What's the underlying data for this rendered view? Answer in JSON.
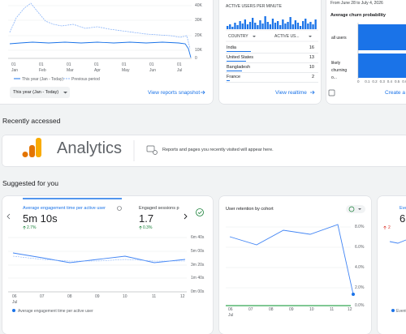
{
  "overview_card": {
    "y_ticks": [
      "40K",
      "30K",
      "20K",
      "10K",
      "0"
    ],
    "x_ticks": [
      [
        "01",
        "Jan"
      ],
      [
        "01",
        "Feb"
      ],
      [
        "01",
        "Mar"
      ],
      [
        "01",
        "Apr"
      ],
      [
        "01",
        "May"
      ],
      [
        "01",
        "Jun"
      ],
      [
        "01",
        "Jul"
      ]
    ],
    "legend": [
      "This year (Jan - Today)",
      "Previous period"
    ],
    "date_button": "This year (Jan - Today)",
    "link": "View reports snapshot"
  },
  "realtime_card": {
    "title": "ACTIVE USERS PER MINUTE",
    "columns": [
      "COUNTRY",
      "ACTIVE US..."
    ],
    "rows": [
      [
        "India",
        "16"
      ],
      [
        "United States",
        "13"
      ],
      [
        "Bangladesh",
        "10"
      ],
      [
        "France",
        "2"
      ]
    ],
    "link": "View realtime"
  },
  "churn_card": {
    "date_range": "From June 28 to July 4, 2026",
    "title": "Average churn probability",
    "rows": [
      "all users",
      "likely churning o..."
    ],
    "x_ticks": [
      "0",
      "0.1",
      "0.2",
      "0.3",
      "0.4",
      "0.5",
      "0.6",
      "0.7",
      "0.8"
    ],
    "link": "Create a"
  },
  "recently_accessed": {
    "heading": "Recently accessed",
    "product": "Analytics",
    "message": "Reports and pages you recently visited will appear here."
  },
  "suggested": {
    "heading": "Suggested for you",
    "engagement_card": {
      "tabs": [
        {
          "label": "Average engagement time per active user",
          "value": "5m 10s",
          "change": "2.7%"
        },
        {
          "label": "Engaged sessions p",
          "value": "1.7",
          "change": "0.3%"
        }
      ],
      "y_ticks": [
        "6m 40s",
        "5m 00s",
        "3m 20s",
        "1m 40s",
        "0m 00s"
      ],
      "x_ticks": [
        [
          "06",
          "Jul"
        ],
        [
          "07",
          ""
        ],
        [
          "08",
          ""
        ],
        [
          "09",
          ""
        ],
        [
          "10",
          ""
        ],
        [
          "11",
          ""
        ],
        [
          "12",
          ""
        ]
      ],
      "legend": "Average engagement time per active user"
    },
    "retention_card": {
      "title": "User retention by cohort",
      "y_ticks": [
        "8.0%",
        "6.0%",
        "4.0%",
        "2.0%",
        "0.0%"
      ],
      "x_ticks": [
        [
          "06",
          "Jul"
        ],
        [
          "07",
          ""
        ],
        [
          "08",
          ""
        ],
        [
          "09",
          ""
        ],
        [
          "10",
          ""
        ],
        [
          "11",
          ""
        ],
        [
          "12",
          ""
        ]
      ],
      "legend": "Event"
    },
    "partial_card": {
      "title": "Eve",
      "value": "6!",
      "change": "2"
    }
  }
}
